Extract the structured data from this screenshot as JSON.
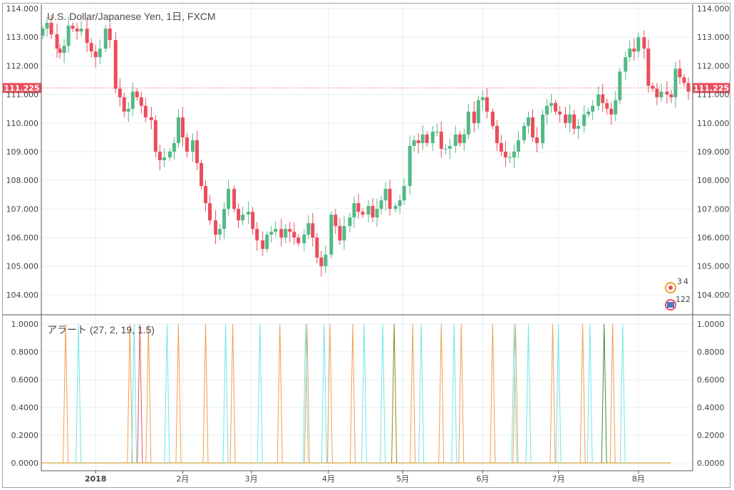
{
  "chart_data": [
    {
      "type": "candlestick",
      "title": "U.S. Dollar/Japanese Yen, 1日, FXCM",
      "ylim": [
        103.3,
        114.15
      ],
      "yticks": [
        "114.000",
        "113.000",
        "112.000",
        "111.000",
        "110.000",
        "109.000",
        "108.000",
        "107.000",
        "106.000",
        "105.000",
        "104.000"
      ],
      "ytick_values": [
        114,
        113,
        112,
        111,
        110,
        109,
        108,
        107,
        106,
        105,
        104
      ],
      "current_price": 111.225,
      "current_price_label": "111.225",
      "up_color": "#53b987",
      "down_color": "#eb4d5c",
      "grid": true,
      "close": [
        113.3,
        113.5,
        113.1,
        112.6,
        112.45,
        112.7,
        113.4,
        113.3,
        113.2,
        113.3,
        112.8,
        112.5,
        112.3,
        112.6,
        113.3,
        112.9,
        111.2,
        110.9,
        110.4,
        110.5,
        111.1,
        110.9,
        110.6,
        110.2,
        110.1,
        109.0,
        108.7,
        108.8,
        109.0,
        109.3,
        110.2,
        109.5,
        109.0,
        109.4,
        108.6,
        107.8,
        107.2,
        106.6,
        106.1,
        106.3,
        107.0,
        107.7,
        107.0,
        106.6,
        106.8,
        106.9,
        106.3,
        105.9,
        105.6,
        106.1,
        106.2,
        106.3,
        106.0,
        106.3,
        106.2,
        106.0,
        105.8,
        106.1,
        106.5,
        106.0,
        105.3,
        105.0,
        105.4,
        106.8,
        106.4,
        105.9,
        106.4,
        106.7,
        107.2,
        106.9,
        106.8,
        107.1,
        106.7,
        107.0,
        107.3,
        107.7,
        107.0,
        107.1,
        107.3,
        107.8,
        109.2,
        109.4,
        109.3,
        109.6,
        109.3,
        109.7,
        109.7,
        109.1,
        109.1,
        109.2,
        109.6,
        109.3,
        109.6,
        110.4,
        110.0,
        110.8,
        110.9,
        110.4,
        109.9,
        109.3,
        109.0,
        108.8,
        108.8,
        109.0,
        109.4,
        109.9,
        110.2,
        109.5,
        109.3,
        110.3,
        110.6,
        110.7,
        110.4,
        110.3,
        110.0,
        110.3,
        109.8,
        109.9,
        110.3,
        110.4,
        110.6,
        111.0,
        110.7,
        110.5,
        110.3,
        110.8,
        111.8,
        112.3,
        112.6,
        112.5,
        113.0,
        112.6,
        111.3,
        111.2,
        110.9,
        111.1,
        111.0,
        110.9,
        111.9,
        111.6,
        111.4,
        111.1
      ],
      "x_positions": [
        1,
        4,
        7,
        11,
        13,
        16,
        19,
        22,
        25,
        28,
        32,
        35,
        38,
        41,
        45,
        48,
        52,
        55,
        58,
        61,
        64,
        67,
        70,
        73,
        77,
        80,
        83,
        86,
        90,
        93,
        96,
        99,
        102,
        106,
        109,
        112,
        115,
        118,
        122,
        125,
        128,
        131,
        135,
        138,
        141,
        145,
        148,
        151,
        155,
        158,
        161,
        164,
        168,
        171,
        174,
        177,
        180,
        184,
        187,
        190,
        193,
        196,
        199,
        203,
        206,
        209,
        212,
        216,
        219,
        222,
        225,
        229,
        232,
        235,
        238,
        241,
        244,
        248,
        251,
        254,
        258,
        261,
        264,
        267,
        270,
        274,
        277,
        280,
        283,
        286,
        290,
        293,
        296,
        299,
        303,
        306,
        309,
        312,
        316,
        319,
        322,
        325,
        328,
        331,
        334,
        338,
        341,
        344,
        347,
        351,
        354,
        357,
        360,
        363,
        367,
        370,
        373,
        376,
        380,
        383,
        386,
        390,
        393,
        396,
        399,
        402,
        405,
        409,
        412,
        415,
        418,
        422,
        425,
        428,
        431,
        434,
        438,
        441,
        444,
        447,
        450,
        453
      ]
    },
    {
      "type": "line",
      "title": "アラート (27, 2, 19, 1.5)",
      "ylim": [
        0,
        1.06
      ],
      "yticks": [
        "1.0000",
        "0.8000",
        "0.6000",
        "0.4000",
        "0.2000",
        "0.0000"
      ],
      "ytick_values": [
        1,
        0.8,
        0.6,
        0.4,
        0.2,
        0
      ],
      "baseline_color": "#d4a93a",
      "series": [
        {
          "color": "#f0a050",
          "spikes": [
            17,
            62,
            75,
            96,
            115,
            134,
            167,
            186,
            202,
            218,
            260,
            280,
            294,
            316,
            332,
            358,
            379,
            400
          ]
        },
        {
          "color": "#6fe7e7",
          "spikes": [
            26,
            65,
            88,
            129,
            153,
            185,
            198,
            226,
            239,
            266,
            289,
            331,
            341,
            362,
            384,
            407
          ]
        },
        {
          "color": "#ea5363",
          "spikes": [
            69
          ]
        },
        {
          "color": "#8c8c1a",
          "spikes": [
            247
          ]
        },
        {
          "color": "#3d8a3d",
          "spikes": [
            394
          ]
        }
      ]
    }
  ],
  "xaxis": {
    "ticks": [
      {
        "label": "2018",
        "x": 38
      },
      {
        "label": "2月",
        "x": 99
      },
      {
        "label": "3月",
        "x": 147
      },
      {
        "label": "4月",
        "x": 201
      },
      {
        "label": "5月",
        "x": 253
      },
      {
        "label": "6月",
        "x": 309
      },
      {
        "label": "7月",
        "x": 362
      },
      {
        "label": "8月",
        "x": 418
      }
    ],
    "x_min": 0,
    "x_max": 456
  },
  "legend_markers": {
    "a": "3",
    "b": "4",
    "c": "12",
    "d": "2"
  }
}
